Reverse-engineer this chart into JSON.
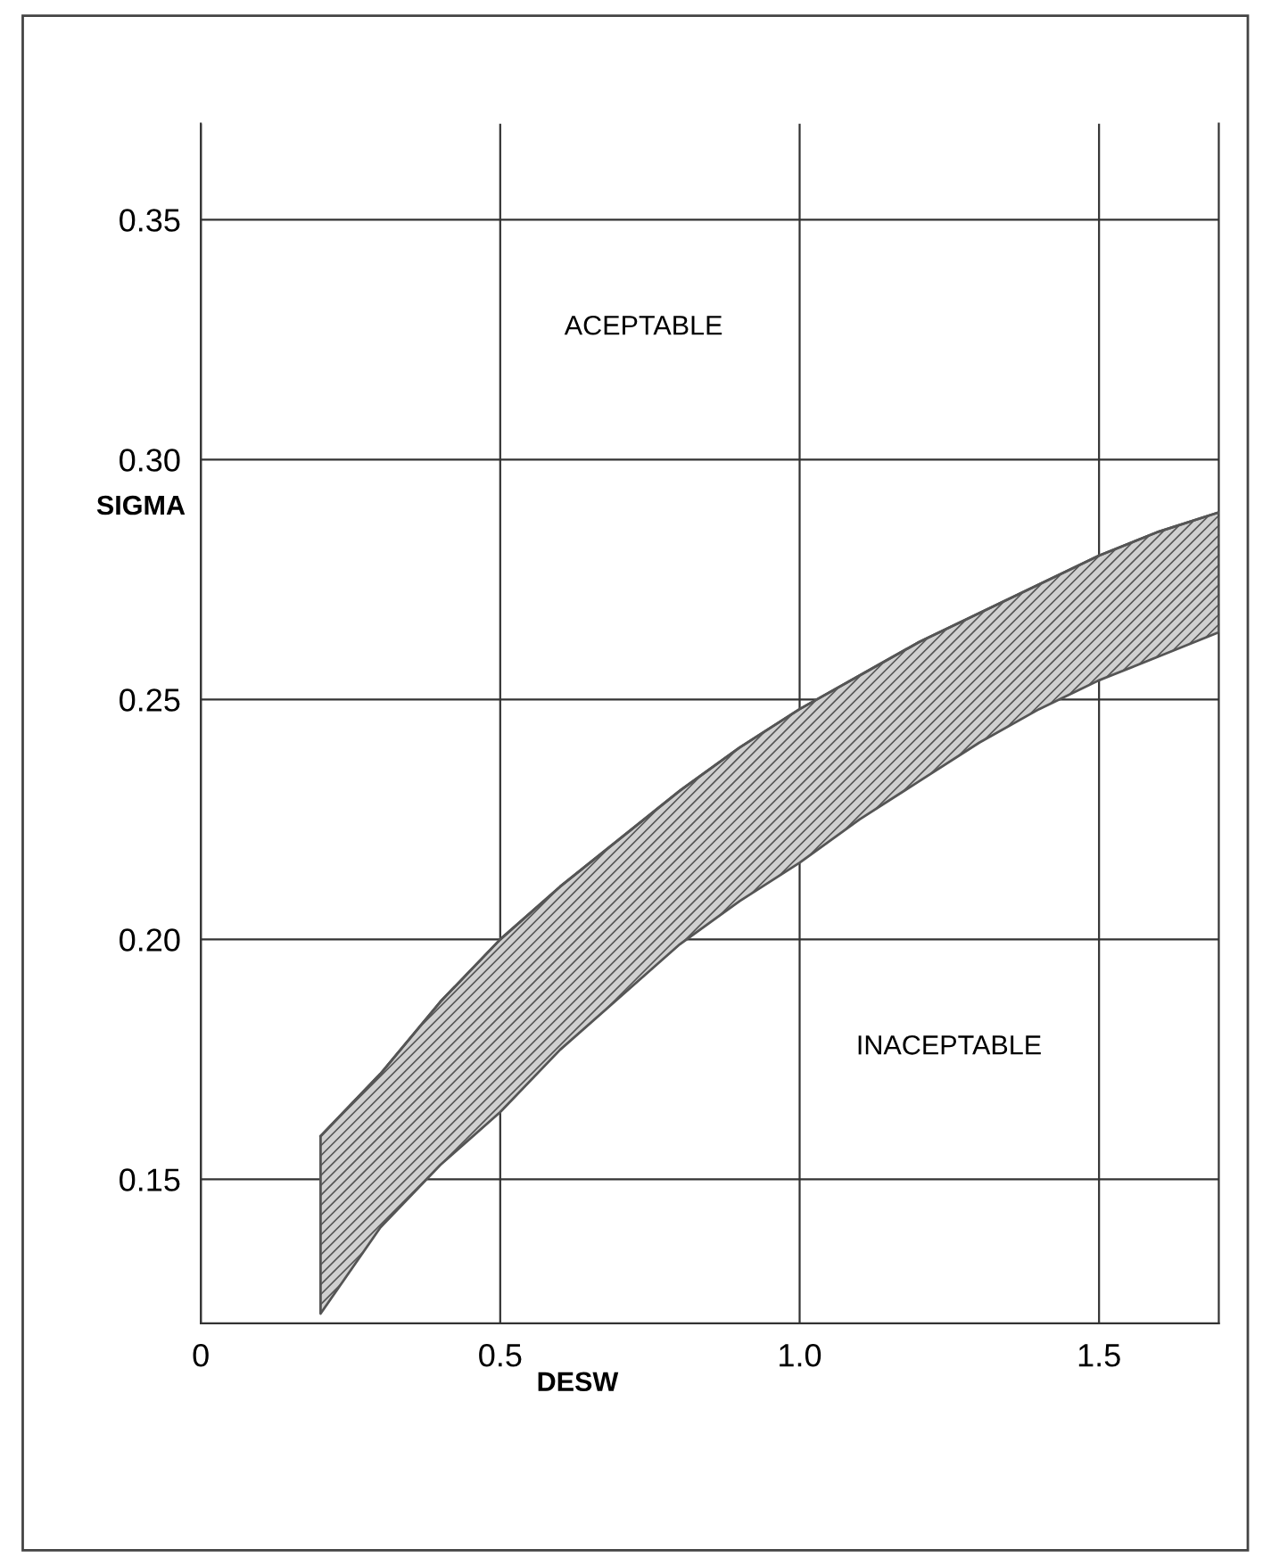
{
  "chart_data": {
    "type": "line",
    "xlabel": "DESW",
    "ylabel": "SIGMA",
    "xlim": [
      0,
      1.7
    ],
    "ylim": [
      0.12,
      0.37
    ],
    "xticks": [
      0,
      {
        "value": 0.5,
        "label": "0.5"
      },
      {
        "value": 1.0,
        "label": "1.0"
      },
      {
        "value": 1.5,
        "label": "1.5"
      }
    ],
    "yticks": [
      {
        "value": 0.15,
        "label": "0.15"
      },
      {
        "value": 0.2,
        "label": "0.20"
      },
      {
        "value": 0.25,
        "label": "0.25"
      },
      {
        "value": 0.3,
        "label": "0.30"
      },
      {
        "value": 0.35,
        "label": "0.35"
      }
    ],
    "grid": true,
    "series": [
      {
        "color": "#555555",
        "x": [
          0.2,
          0.3,
          0.4,
          0.5,
          0.6,
          0.7,
          0.8,
          0.9,
          1.0,
          1.1,
          1.2,
          1.3,
          1.4,
          1.5,
          1.6,
          1.7
        ],
        "lower": [
          0.122,
          0.14,
          0.153,
          0.164,
          0.177,
          0.188,
          0.199,
          0.208,
          0.216,
          0.225,
          0.233,
          0.241,
          0.248,
          0.254,
          0.259,
          0.264
        ],
        "upper": [
          0.159,
          0.172,
          0.187,
          0.2,
          0.211,
          0.221,
          0.231,
          0.24,
          0.248,
          0.255,
          0.262,
          0.268,
          0.274,
          0.28,
          0.285,
          0.289
        ],
        "values": [
          0.159,
          0.172,
          0.187,
          0.2,
          0.211,
          0.221,
          0.231,
          0.24,
          0.248,
          0.255,
          0.262,
          0.268,
          0.274,
          0.28,
          0.285,
          0.289
        ]
      }
    ],
    "annotations": [
      "ACEPTABLE",
      "INACEPTABLE"
    ]
  }
}
